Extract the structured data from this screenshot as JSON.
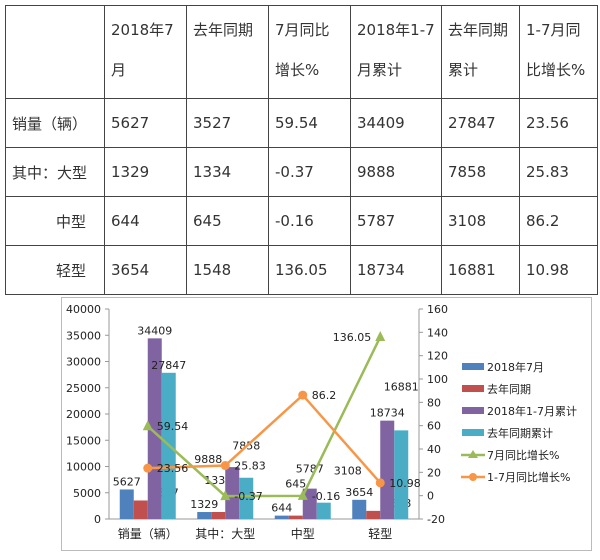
{
  "table": {
    "headers": [
      "",
      "2018年7月",
      "去年同期",
      "7月同比增长%",
      "2018年1-7月累计",
      "去年同期累计",
      "1-7月同比增长%"
    ],
    "rows": [
      [
        "销量（辆）",
        "5627",
        "3527",
        "59.54",
        "34409",
        "27847",
        "23.56"
      ],
      [
        "其中：大型",
        "1329",
        "1334",
        "-0.37",
        "9888",
        "7858",
        "25.83"
      ],
      [
        "中型",
        "644",
        "645",
        "-0.16",
        "5787",
        "3108",
        "86.2"
      ],
      [
        "轻型",
        "3654",
        "1548",
        "136.05",
        "18734",
        "16881",
        "10.98"
      ]
    ]
  },
  "chart_data": {
    "type": "bar",
    "categories": [
      "销量（辆）",
      "其中：大型",
      "中型",
      "轻型"
    ],
    "series": [
      {
        "name": "2018年7月",
        "type": "bar",
        "axis": "left",
        "color": "#4f81bd",
        "values": [
          5627,
          1329,
          644,
          3654
        ]
      },
      {
        "name": "去年同期",
        "type": "bar",
        "axis": "left",
        "color": "#c0504d",
        "values": [
          3527,
          1334,
          645,
          1548
        ]
      },
      {
        "name": "2018年1-7月累计",
        "type": "bar",
        "axis": "left",
        "color": "#8064a2",
        "values": [
          34409,
          9888,
          5787,
          18734
        ]
      },
      {
        "name": "去年同期累计",
        "type": "bar",
        "axis": "left",
        "color": "#4bacc6",
        "values": [
          27847,
          7858,
          3108,
          16881
        ]
      },
      {
        "name": "7月同比增长%",
        "type": "line",
        "marker": "triangle",
        "axis": "right",
        "color": "#9bbb59",
        "values": [
          59.54,
          -0.37,
          -0.16,
          136.05
        ]
      },
      {
        "name": "1-7月同比增长%",
        "type": "line",
        "marker": "circle",
        "axis": "right",
        "color": "#f79646",
        "values": [
          23.56,
          25.83,
          86.2,
          10.98
        ]
      }
    ],
    "y_left": {
      "min": 0,
      "max": 40000,
      "ticks": [
        "0",
        "5000",
        "10000",
        "15000",
        "20000",
        "25000",
        "30000",
        "35000",
        "40000"
      ]
    },
    "y_right": {
      "min": -20,
      "max": 160,
      "ticks": [
        "-20",
        "0",
        "20",
        "40",
        "60",
        "80",
        "100",
        "120",
        "140",
        "160"
      ]
    },
    "legend_position": "right",
    "grid": false
  }
}
